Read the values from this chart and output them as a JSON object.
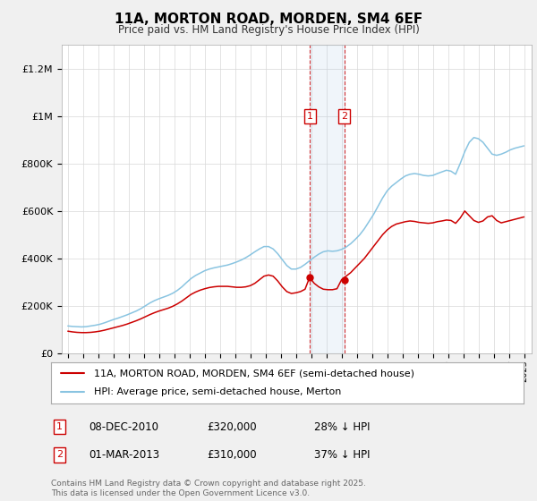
{
  "title": "11A, MORTON ROAD, MORDEN, SM4 6EF",
  "subtitle": "Price paid vs. HM Land Registry's House Price Index (HPI)",
  "hpi_color": "#89c4e1",
  "price_color": "#cc0000",
  "sale1_date": "08-DEC-2010",
  "sale1_price": 320000,
  "sale1_label": "28% ↓ HPI",
  "sale2_date": "01-MAR-2013",
  "sale2_price": 310000,
  "sale2_label": "37% ↓ HPI",
  "legend_property": "11A, MORTON ROAD, MORDEN, SM4 6EF (semi-detached house)",
  "legend_hpi": "HPI: Average price, semi-detached house, Merton",
  "footer": "Contains HM Land Registry data © Crown copyright and database right 2025.\nThis data is licensed under the Open Government Licence v3.0.",
  "sale1_x": 2010.92,
  "sale2_x": 2013.17,
  "background_color": "#f0f0f0",
  "plot_bg": "#ffffff",
  "hpi_years": [
    1995.0,
    1995.3,
    1995.6,
    1995.9,
    1996.2,
    1996.5,
    1996.8,
    1997.1,
    1997.4,
    1997.7,
    1998.0,
    1998.3,
    1998.6,
    1998.9,
    1999.2,
    1999.5,
    1999.8,
    2000.1,
    2000.4,
    2000.7,
    2001.0,
    2001.3,
    2001.6,
    2001.9,
    2002.2,
    2002.5,
    2002.8,
    2003.1,
    2003.4,
    2003.7,
    2004.0,
    2004.3,
    2004.6,
    2004.9,
    2005.2,
    2005.5,
    2005.8,
    2006.1,
    2006.4,
    2006.7,
    2007.0,
    2007.3,
    2007.6,
    2007.9,
    2008.2,
    2008.5,
    2008.8,
    2009.1,
    2009.4,
    2009.7,
    2010.0,
    2010.3,
    2010.6,
    2010.9,
    2011.2,
    2011.5,
    2011.8,
    2012.1,
    2012.4,
    2012.7,
    2013.0,
    2013.3,
    2013.6,
    2013.9,
    2014.2,
    2014.5,
    2014.8,
    2015.1,
    2015.4,
    2015.7,
    2016.0,
    2016.3,
    2016.6,
    2016.9,
    2017.2,
    2017.5,
    2017.8,
    2018.1,
    2018.4,
    2018.7,
    2019.0,
    2019.3,
    2019.6,
    2019.9,
    2020.2,
    2020.5,
    2020.8,
    2021.1,
    2021.4,
    2021.7,
    2022.0,
    2022.3,
    2022.6,
    2022.9,
    2023.2,
    2023.5,
    2023.8,
    2024.1,
    2024.4,
    2024.7,
    2025.0
  ],
  "hpi_values": [
    115000,
    113000,
    112000,
    111000,
    112000,
    115000,
    118000,
    122000,
    128000,
    135000,
    142000,
    148000,
    155000,
    162000,
    170000,
    178000,
    188000,
    200000,
    212000,
    222000,
    230000,
    237000,
    244000,
    253000,
    265000,
    280000,
    298000,
    315000,
    328000,
    338000,
    348000,
    355000,
    360000,
    364000,
    368000,
    372000,
    378000,
    385000,
    393000,
    403000,
    415000,
    428000,
    440000,
    450000,
    450000,
    440000,
    420000,
    395000,
    370000,
    355000,
    355000,
    362000,
    375000,
    390000,
    405000,
    418000,
    428000,
    432000,
    430000,
    432000,
    438000,
    448000,
    462000,
    480000,
    500000,
    525000,
    555000,
    585000,
    620000,
    655000,
    685000,
    705000,
    720000,
    735000,
    748000,
    755000,
    758000,
    755000,
    750000,
    748000,
    750000,
    758000,
    765000,
    772000,
    768000,
    755000,
    800000,
    850000,
    890000,
    910000,
    905000,
    890000,
    865000,
    840000,
    835000,
    840000,
    848000,
    858000,
    865000,
    870000,
    875000
  ],
  "price_years": [
    1995.0,
    1995.3,
    1995.6,
    1995.9,
    1996.2,
    1996.5,
    1996.8,
    1997.1,
    1997.4,
    1997.7,
    1998.0,
    1998.3,
    1998.6,
    1998.9,
    1999.2,
    1999.5,
    1999.8,
    2000.1,
    2000.4,
    2000.7,
    2001.0,
    2001.3,
    2001.6,
    2001.9,
    2002.2,
    2002.5,
    2002.8,
    2003.1,
    2003.4,
    2003.7,
    2004.0,
    2004.3,
    2004.6,
    2004.9,
    2005.2,
    2005.5,
    2005.8,
    2006.1,
    2006.4,
    2006.7,
    2007.0,
    2007.3,
    2007.6,
    2007.9,
    2008.2,
    2008.5,
    2008.8,
    2009.1,
    2009.4,
    2009.7,
    2010.0,
    2010.3,
    2010.6,
    2010.9,
    2011.2,
    2011.5,
    2011.8,
    2012.1,
    2012.4,
    2012.7,
    2013.0,
    2013.3,
    2013.6,
    2013.9,
    2014.2,
    2014.5,
    2014.8,
    2015.1,
    2015.4,
    2015.7,
    2016.0,
    2016.3,
    2016.6,
    2016.9,
    2017.2,
    2017.5,
    2017.8,
    2018.1,
    2018.4,
    2018.7,
    2019.0,
    2019.3,
    2019.6,
    2019.9,
    2020.2,
    2020.5,
    2020.8,
    2021.1,
    2021.4,
    2021.7,
    2022.0,
    2022.3,
    2022.6,
    2022.9,
    2023.2,
    2023.5,
    2023.8,
    2024.1,
    2024.4,
    2024.7,
    2025.0
  ],
  "price_values": [
    93000,
    90000,
    88000,
    87000,
    87000,
    88000,
    90000,
    93000,
    97000,
    102000,
    107000,
    112000,
    117000,
    123000,
    130000,
    137000,
    145000,
    154000,
    163000,
    171000,
    178000,
    184000,
    190000,
    198000,
    208000,
    220000,
    234000,
    248000,
    258000,
    266000,
    272000,
    277000,
    280000,
    282000,
    282000,
    282000,
    280000,
    278000,
    278000,
    280000,
    285000,
    295000,
    310000,
    325000,
    330000,
    325000,
    305000,
    280000,
    260000,
    252000,
    255000,
    260000,
    270000,
    320000,
    295000,
    280000,
    270000,
    268000,
    268000,
    272000,
    310000,
    325000,
    340000,
    360000,
    380000,
    400000,
    425000,
    450000,
    475000,
    500000,
    520000,
    535000,
    545000,
    550000,
    555000,
    558000,
    556000,
    552000,
    550000,
    548000,
    550000,
    555000,
    558000,
    562000,
    560000,
    548000,
    570000,
    600000,
    580000,
    560000,
    552000,
    558000,
    575000,
    580000,
    560000,
    550000,
    555000,
    560000,
    565000,
    570000,
    575000
  ]
}
